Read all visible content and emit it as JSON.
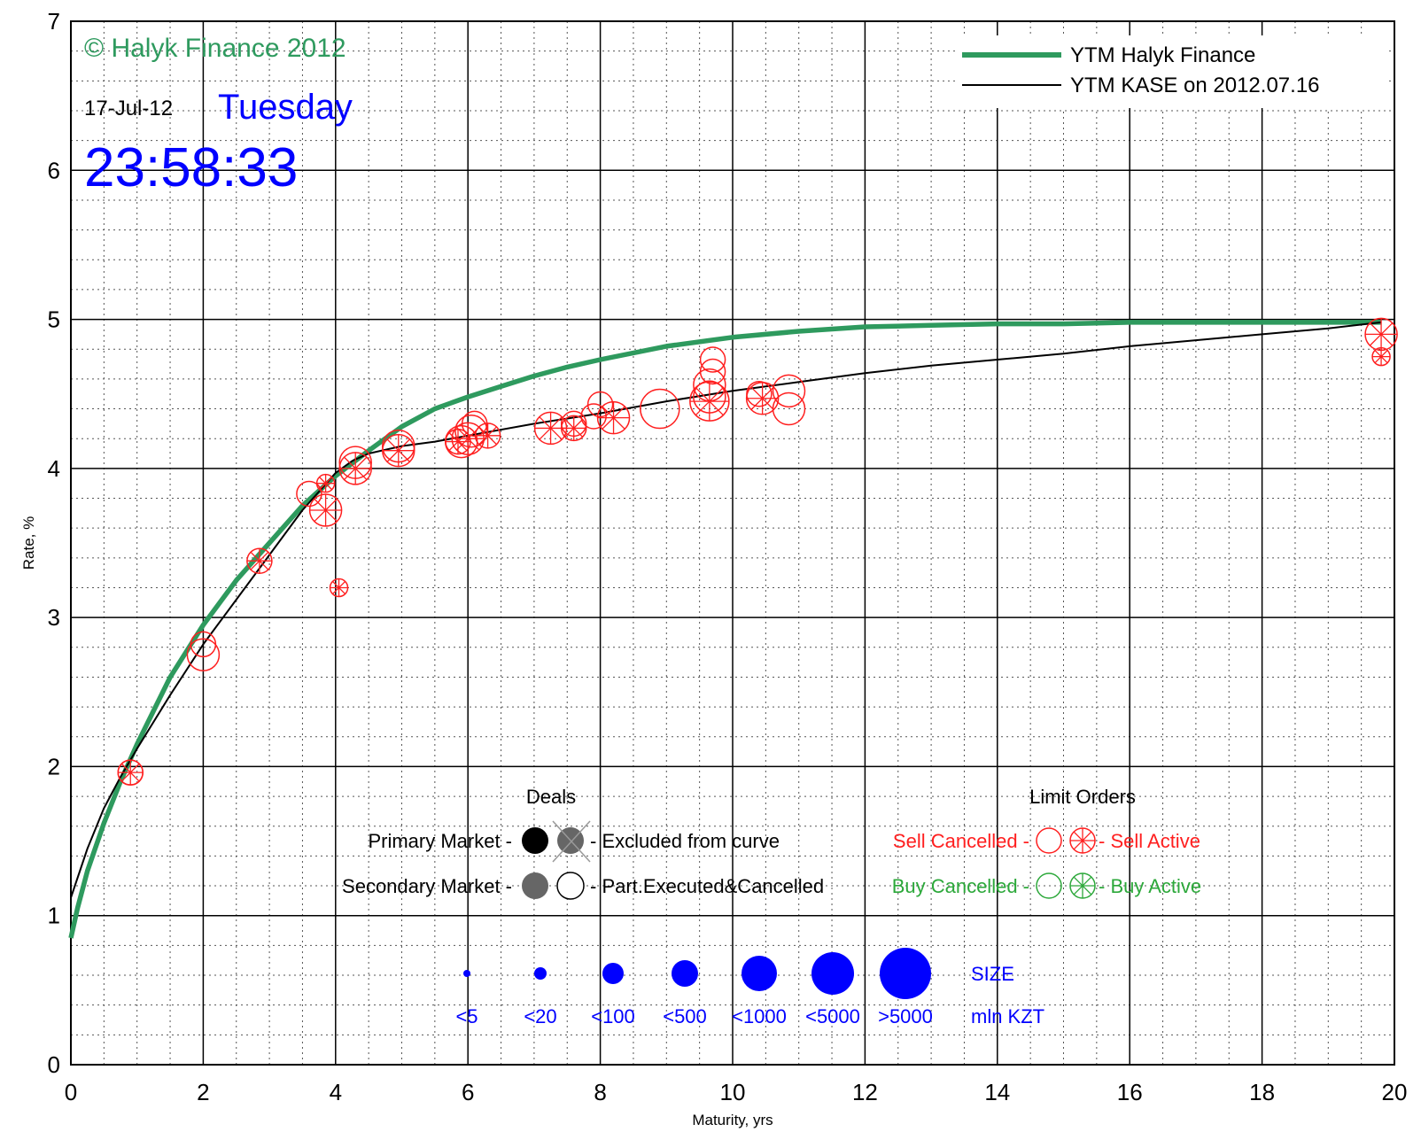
{
  "chart_data": {
    "type": "scatter",
    "xlabel": "Maturity, yrs",
    "ylabel": "Rate, %",
    "xlim": [
      0,
      20
    ],
    "ylim": [
      0,
      7
    ],
    "xticks": [
      "0",
      "2",
      "4",
      "6",
      "8",
      "10",
      "12",
      "14",
      "16",
      "18",
      "20"
    ],
    "yticks": [
      "0",
      "1",
      "2",
      "3",
      "4",
      "5",
      "6",
      "7"
    ],
    "grid": true,
    "legend_position": "top-right",
    "colors": {
      "halyk": "#2e9a5e",
      "kase": "#000000",
      "sell": "#ff1f1f",
      "buy": "#2ca83a",
      "size": "#0000ff",
      "stamp": "#0000ff"
    },
    "series": [
      {
        "name": "YTM Halyk Finance",
        "kind": "line",
        "x": [
          0,
          0.1,
          0.25,
          0.5,
          0.75,
          1,
          1.5,
          2,
          2.5,
          3,
          3.5,
          4,
          4.5,
          5,
          5.5,
          6,
          6.5,
          7,
          7.5,
          8,
          9,
          10,
          11,
          12,
          13,
          14,
          15,
          16,
          17,
          18,
          19,
          19.8
        ],
        "y": [
          0.85,
          1.05,
          1.3,
          1.62,
          1.9,
          2.15,
          2.6,
          2.95,
          3.25,
          3.5,
          3.75,
          3.95,
          4.12,
          4.28,
          4.4,
          4.48,
          4.55,
          4.62,
          4.68,
          4.73,
          4.82,
          4.88,
          4.92,
          4.95,
          4.96,
          4.97,
          4.97,
          4.98,
          4.98,
          4.98,
          4.98,
          4.98
        ]
      },
      {
        "name": "YTM KASE on 2012.07.16",
        "kind": "line",
        "x": [
          0,
          0.25,
          0.5,
          0.75,
          1,
          1.5,
          2,
          2.5,
          3,
          3.5,
          4,
          4.25,
          4.5,
          5,
          5.5,
          6,
          7,
          8,
          9,
          10,
          11,
          12,
          13,
          14,
          15,
          16,
          17,
          18,
          19,
          19.8
        ],
        "y": [
          1.12,
          1.45,
          1.72,
          1.93,
          2.12,
          2.48,
          2.82,
          3.12,
          3.42,
          3.72,
          3.97,
          4.05,
          4.1,
          4.15,
          4.18,
          4.22,
          4.3,
          4.37,
          4.45,
          4.52,
          4.58,
          4.64,
          4.69,
          4.73,
          4.77,
          4.82,
          4.86,
          4.9,
          4.94,
          4.98
        ]
      },
      {
        "name": "Sell Cancelled",
        "kind": "marker",
        "points": [
          {
            "x": 0.9,
            "y": 1.96,
            "size": 1
          },
          {
            "x": 2.0,
            "y": 2.82,
            "size": 1
          },
          {
            "x": 2.0,
            "y": 2.75,
            "size": 2
          },
          {
            "x": 3.6,
            "y": 3.83,
            "size": 1
          },
          {
            "x": 4.3,
            "y": 4.04,
            "size": 2
          },
          {
            "x": 4.95,
            "y": 4.15,
            "size": 2
          },
          {
            "x": 5.9,
            "y": 4.18,
            "size": 2
          },
          {
            "x": 6.05,
            "y": 4.25,
            "size": 2
          },
          {
            "x": 6.1,
            "y": 4.3,
            "size": 1
          },
          {
            "x": 7.6,
            "y": 4.3,
            "size": 1
          },
          {
            "x": 7.9,
            "y": 4.35,
            "size": 1
          },
          {
            "x": 8.0,
            "y": 4.43,
            "size": 1
          },
          {
            "x": 8.9,
            "y": 4.4,
            "size": 3
          },
          {
            "x": 9.65,
            "y": 4.48,
            "size": 2
          },
          {
            "x": 9.65,
            "y": 4.56,
            "size": 2
          },
          {
            "x": 9.7,
            "y": 4.65,
            "size": 1
          },
          {
            "x": 9.7,
            "y": 4.73,
            "size": 1
          },
          {
            "x": 10.85,
            "y": 4.52,
            "size": 2
          },
          {
            "x": 10.85,
            "y": 4.4,
            "size": 2
          },
          {
            "x": 10.4,
            "y": 4.5,
            "size": 1
          }
        ]
      },
      {
        "name": "Sell Active",
        "kind": "marker",
        "points": [
          {
            "x": 0.9,
            "y": 1.96,
            "size": 1
          },
          {
            "x": 2.85,
            "y": 3.38,
            "size": 1
          },
          {
            "x": 3.85,
            "y": 3.9,
            "size": 0
          },
          {
            "x": 3.85,
            "y": 3.72,
            "size": 2
          },
          {
            "x": 4.05,
            "y": 3.2,
            "size": 0
          },
          {
            "x": 4.3,
            "y": 4.0,
            "size": 2
          },
          {
            "x": 4.95,
            "y": 4.12,
            "size": 2
          },
          {
            "x": 5.85,
            "y": 4.18,
            "size": 1
          },
          {
            "x": 6.0,
            "y": 4.2,
            "size": 2
          },
          {
            "x": 6.3,
            "y": 4.22,
            "size": 1
          },
          {
            "x": 7.25,
            "y": 4.27,
            "size": 2
          },
          {
            "x": 7.6,
            "y": 4.27,
            "size": 1
          },
          {
            "x": 8.2,
            "y": 4.34,
            "size": 2
          },
          {
            "x": 9.65,
            "y": 4.45,
            "size": 3
          },
          {
            "x": 10.45,
            "y": 4.47,
            "size": 2
          },
          {
            "x": 19.8,
            "y": 4.9,
            "size": 2
          },
          {
            "x": 19.8,
            "y": 4.75,
            "size": 0
          }
        ]
      }
    ]
  },
  "stamp": {
    "copyright": "© Halyk Finance 2012",
    "date": "17-Jul-12",
    "weekday": "Tuesday",
    "time": "23:58:33"
  },
  "legend": [
    {
      "label": "YTM Halyk Finance"
    },
    {
      "label": "YTM KASE on 2012.07.16"
    }
  ],
  "key": {
    "deals_title": "Deals",
    "limit_title": "Limit Orders",
    "primary": "Primary Market  -",
    "excluded": "- Excluded from curve",
    "secondary": "Secondary Market -",
    "part": "- Part.Executed&Cancelled",
    "sell_cancelled": "Sell Cancelled -",
    "sell_active": "- Sell Active",
    "buy_cancelled": "Buy Cancelled -",
    "buy_active": "- Buy Active",
    "size_title": "SIZE",
    "size_labels": [
      "<5",
      "<20",
      "<100",
      "<500",
      "<1000",
      "<5000",
      ">5000"
    ],
    "size_unit": "mln KZT"
  }
}
